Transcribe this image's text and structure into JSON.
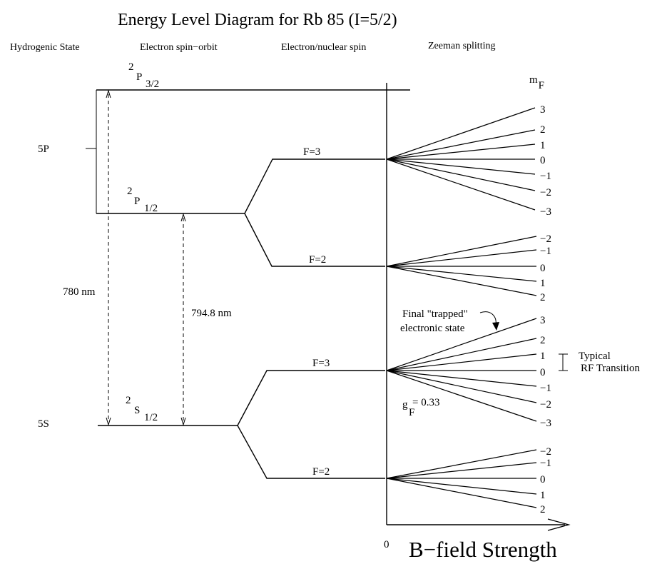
{
  "title": "Energy Level Diagram for Rb 85 (I=5/2)",
  "columns": {
    "hydrogenic": "Hydrogenic State",
    "spin_orbit": "Electron spin−orbit",
    "nuclear": "Electron/nuclear spin",
    "zeeman": "Zeeman splitting"
  },
  "mF_label": {
    "main": "m",
    "sub": "F"
  },
  "states": {
    "p5": "5P",
    "s5": "5S",
    "p32": {
      "sup": "2",
      "main": "P",
      "sub": "3/2"
    },
    "p12": {
      "sup": "2",
      "main": "P",
      "sub": "1/2"
    },
    "s12": {
      "sup": "2",
      "main": "S",
      "sub": "1/2"
    }
  },
  "transitions": {
    "d2": "780 nm",
    "d1": "794.8 nm"
  },
  "hyperfine": {
    "p_upper": "F=3",
    "p_lower": "F=2",
    "s_upper": "F=3",
    "s_lower": "F=2"
  },
  "zeeman_labels": {
    "p_f3": [
      "3",
      "2",
      "1",
      "0",
      "−1",
      "−2",
      "−3"
    ],
    "p_f2": [
      "−2",
      "−1",
      "0",
      "1",
      "2"
    ],
    "s_f3": [
      "3",
      "2",
      "1",
      "0",
      "−1",
      "−2",
      "−3"
    ],
    "s_f2": [
      "−2",
      "−1",
      "0",
      "1",
      "2"
    ]
  },
  "annotations": {
    "trapped_1": "Final \"trapped\"",
    "trapped_2": "electronic state",
    "rf_1": "Typical",
    "rf_2": "RF Transition",
    "gf_main": "g",
    "gf_sub": "F",
    "gf_val": "= 0.33"
  },
  "axis": {
    "origin": "0",
    "label": "B−field Strength"
  }
}
